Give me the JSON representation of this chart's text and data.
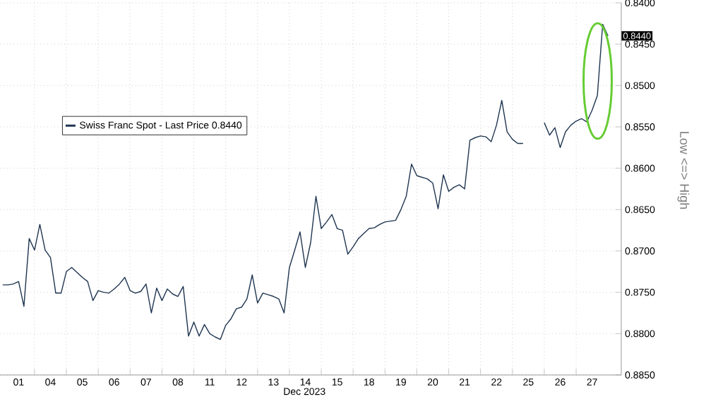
{
  "chart_data": {
    "type": "line",
    "categories": [
      null,
      null,
      null,
      "01",
      null,
      null,
      null,
      null,
      null,
      "04",
      null,
      null,
      null,
      null,
      null,
      "05",
      null,
      null,
      null,
      null,
      null,
      "06",
      null,
      null,
      null,
      null,
      null,
      "07",
      null,
      null,
      null,
      null,
      null,
      "08",
      null,
      null,
      null,
      null,
      null,
      "11",
      null,
      null,
      null,
      null,
      null,
      "12",
      null,
      null,
      null,
      null,
      null,
      "13",
      null,
      null,
      null,
      null,
      null,
      "14",
      null,
      null,
      null,
      null,
      null,
      "15",
      null,
      null,
      null,
      null,
      null,
      "18",
      null,
      null,
      null,
      null,
      null,
      "19",
      null,
      null,
      null,
      null,
      null,
      "20",
      null,
      null,
      null,
      null,
      null,
      "21",
      null,
      null,
      null,
      null,
      null,
      "22",
      null,
      null,
      null,
      null,
      null,
      "25",
      null,
      null,
      null,
      null,
      null,
      "26",
      null,
      null,
      null,
      null,
      null,
      "27",
      null,
      null,
      null,
      null,
      null
    ],
    "series": [
      {
        "name": "Swiss Franc Spot - Last Price 0.8440",
        "color": "#1f3550",
        "values": [
          0.8741,
          0.8741,
          0.874,
          0.8737,
          0.8767,
          0.8685,
          0.8699,
          0.8668,
          0.8699,
          0.8708,
          0.8751,
          0.8751,
          0.8725,
          0.872,
          0.8726,
          0.8732,
          0.8737,
          0.876,
          0.8748,
          0.875,
          0.8751,
          0.8746,
          0.874,
          0.8732,
          0.8748,
          0.8751,
          0.8749,
          0.874,
          0.8775,
          0.8745,
          0.876,
          0.8746,
          0.8752,
          0.8755,
          0.8743,
          0.8803,
          0.8786,
          0.8803,
          0.8789,
          0.88,
          0.8804,
          0.8807,
          0.879,
          0.8782,
          0.877,
          0.8768,
          0.8758,
          0.8729,
          0.8763,
          0.8751,
          0.8753,
          0.8755,
          0.8758,
          0.8775,
          0.872,
          0.8699,
          0.8677,
          0.872,
          0.869,
          0.8634,
          0.8673,
          0.8665,
          0.8656,
          0.8673,
          0.8675,
          0.8704,
          0.8695,
          0.8685,
          0.8679,
          0.8673,
          0.8672,
          0.8668,
          0.8665,
          0.8664,
          0.8663,
          0.865,
          0.8634,
          0.8595,
          0.8609,
          0.8611,
          0.8613,
          0.8618,
          0.8649,
          0.8608,
          0.8628,
          0.8623,
          0.862,
          0.8625,
          0.8566,
          0.8563,
          0.8561,
          0.8562,
          0.8568,
          0.8548,
          0.8518,
          0.8556,
          0.8565,
          0.857,
          0.857,
          null,
          null,
          null,
          0.8545,
          0.856,
          0.8551,
          0.8575,
          0.8556,
          0.8548,
          0.8543,
          0.854,
          0.8544,
          0.853,
          0.8512,
          0.8426,
          0.844,
          null,
          null
        ]
      }
    ],
    "xlabel": "Dec 2023",
    "ylim": [
      0.885,
      0.84
    ],
    "yticks": [
      {
        "value": 0.84,
        "label": "0.8400"
      },
      {
        "value": 0.845,
        "label": "0.8450"
      },
      {
        "value": 0.85,
        "label": "0.8500"
      },
      {
        "value": 0.855,
        "label": "0.8550"
      },
      {
        "value": 0.86,
        "label": "0.8600"
      },
      {
        "value": 0.865,
        "label": "0.8650"
      },
      {
        "value": 0.87,
        "label": "0.8700"
      },
      {
        "value": 0.875,
        "label": "0.8750"
      },
      {
        "value": 0.88,
        "label": "0.8800"
      },
      {
        "value": 0.885,
        "label": "0.8850"
      }
    ],
    "grid": true,
    "legend": "left",
    "annotations": [
      "0.8440",
      "Low <=> High"
    ]
  }
}
